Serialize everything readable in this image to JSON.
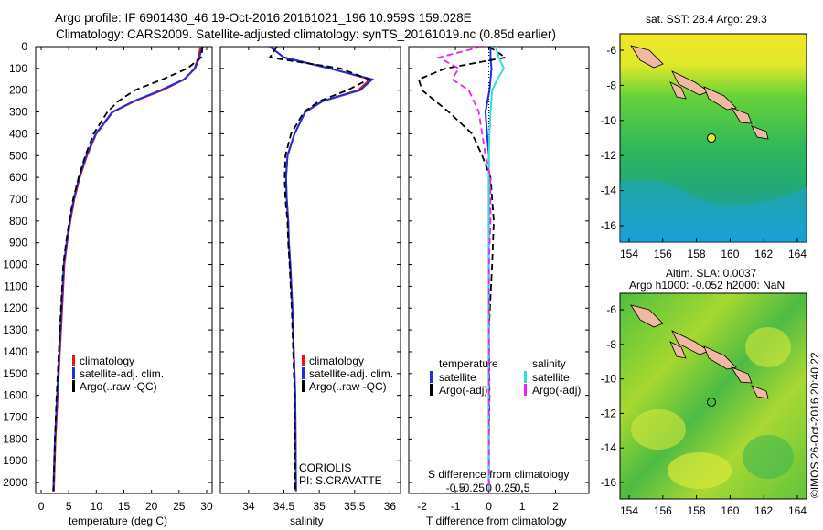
{
  "header": {
    "line1": "Argo profile: IF 6901430_46 19-Oct-2016 20161021_196 10.959S 159.028E",
    "line2": "Climatology: CARS2009. Satellite-adjusted climatology: synTS_20161019.nc (0.85d earlier)"
  },
  "credit": "©IMOS 26-Oct-2016 20:40:22",
  "colors": {
    "climatology": "#ee1111",
    "satellite": "#1f2fdd",
    "argo": "#000000",
    "satellite_s": "#33dddd",
    "argo_s": "#ee22ee"
  },
  "panels": {
    "temperature": {
      "xlabel": "temperature (deg C)",
      "xticks": [
        0,
        5,
        10,
        15,
        20,
        25,
        30
      ],
      "legend": [
        "climatology",
        "satellite-adj. clim.",
        "Argo(..raw -QC)"
      ]
    },
    "salinity": {
      "xlabel": "salinity",
      "xticks": [
        34,
        34.5,
        35,
        35.5,
        36
      ],
      "legend": [
        "climatology",
        "satellite-adj. clim.",
        "Argo(..raw -QC)"
      ],
      "note1": "CORIOLIS",
      "note2": "PI: S.CRAVATTE"
    },
    "difference": {
      "xlabel": "T difference from climatology",
      "xlabel_top": "S difference from climatology",
      "xticks": [
        -2,
        -1,
        0,
        1,
        2
      ],
      "xticks_top": [
        "-0.5",
        "-0.25",
        "0",
        "0.25",
        "0.5"
      ],
      "legend_t_head": "temperature",
      "legend_s_head": "salinity",
      "legend_t": [
        "satellite",
        "Argo(-adj)"
      ],
      "legend_s": [
        "satellite",
        "Argo(-adj)"
      ]
    }
  },
  "depth_ticks": [
    0,
    100,
    200,
    300,
    400,
    500,
    600,
    700,
    800,
    900,
    1000,
    1100,
    1200,
    1300,
    1400,
    1500,
    1600,
    1700,
    1800,
    1900,
    2000
  ],
  "map_sst": {
    "title": "sat. SST: 28.4 Argo: 29.3",
    "xticks": [
      154,
      156,
      158,
      160,
      162,
      164
    ],
    "yticks": [
      -6,
      -8,
      -10,
      -12,
      -14,
      -16
    ]
  },
  "map_sla": {
    "title1": "Altim. SLA: 0.0037",
    "title2": "Argo h1000: -0.052 h2000: NaN",
    "xticks": [
      154,
      156,
      158,
      160,
      162,
      164
    ],
    "yticks": [
      -6,
      -8,
      -10,
      -12,
      -14,
      -16
    ]
  },
  "chart_data": [
    {
      "type": "line",
      "name": "temperature profile",
      "xlabel": "temperature (deg C)",
      "ylabel": "",
      "xlim": [
        -1,
        31
      ],
      "ylim": [
        2050,
        0
      ],
      "series": [
        {
          "name": "climatology",
          "x": [
            28.9,
            28.5,
            27.8,
            26.0,
            22.0,
            17.0,
            13.0,
            10.0,
            8.3,
            7.0,
            6.0,
            5.3,
            4.7,
            4.2,
            3.8,
            3.4,
            3.0,
            2.6,
            2.3
          ],
          "y": [
            0,
            50,
            100,
            150,
            200,
            250,
            300,
            400,
            500,
            600,
            700,
            800,
            900,
            1000,
            1200,
            1400,
            1600,
            1800,
            2040
          ]
        },
        {
          "name": "satellite-adj. clim.",
          "x": [
            29.2,
            28.7,
            27.9,
            25.9,
            21.7,
            16.8,
            12.9,
            9.9,
            8.2,
            6.9,
            5.9,
            5.2,
            4.6,
            4.1,
            3.7,
            3.3,
            2.9,
            2.5,
            2.2
          ],
          "y": [
            0,
            50,
            100,
            150,
            200,
            250,
            300,
            400,
            500,
            600,
            700,
            800,
            900,
            1000,
            1200,
            1400,
            1600,
            1800,
            2040
          ]
        },
        {
          "name": "Argo(..raw -QC)",
          "x": [
            29.3,
            29.0,
            26.5,
            22.0,
            17.0,
            14.0,
            12.0,
            9.5,
            8.0,
            6.8,
            5.8,
            5.1,
            4.5,
            4.0,
            3.6,
            3.2,
            2.8,
            2.5,
            2.2
          ],
          "y": [
            0,
            50,
            100,
            150,
            200,
            250,
            300,
            400,
            500,
            600,
            700,
            800,
            900,
            1000,
            1200,
            1400,
            1600,
            1800,
            2040
          ]
        }
      ]
    },
    {
      "type": "line",
      "name": "salinity profile",
      "xlabel": "salinity",
      "ylabel": "",
      "xlim": [
        33.6,
        36.15
      ],
      "ylim": [
        2050,
        0
      ],
      "series": [
        {
          "name": "climatology",
          "x": [
            34.3,
            34.5,
            35.15,
            35.72,
            35.55,
            35.05,
            34.8,
            34.65,
            34.55,
            34.53,
            34.54,
            34.56,
            34.57,
            34.59,
            34.62,
            34.64,
            34.66,
            34.67
          ],
          "y": [
            0,
            50,
            100,
            150,
            200,
            250,
            300,
            400,
            500,
            600,
            700,
            800,
            900,
            1000,
            1200,
            1400,
            1600,
            2040
          ]
        },
        {
          "name": "satellite-adj. clim.",
          "x": [
            34.3,
            34.5,
            35.15,
            35.75,
            35.58,
            35.05,
            34.8,
            34.65,
            34.55,
            34.53,
            34.54,
            34.56,
            34.57,
            34.59,
            34.62,
            34.64,
            34.66,
            34.67
          ],
          "y": [
            0,
            50,
            100,
            150,
            200,
            250,
            300,
            400,
            500,
            600,
            700,
            800,
            900,
            1000,
            1200,
            1400,
            1600,
            2040
          ]
        },
        {
          "name": "Argo(..raw -QC)",
          "x": [
            34.4,
            34.3,
            35.3,
            35.7,
            35.4,
            35.0,
            34.78,
            34.6,
            34.52,
            34.51,
            34.52,
            34.55,
            34.56,
            34.58,
            34.61,
            34.63,
            34.65,
            34.66
          ],
          "y": [
            0,
            50,
            100,
            150,
            200,
            250,
            300,
            400,
            500,
            600,
            700,
            800,
            900,
            1000,
            1200,
            1400,
            1600,
            2040
          ]
        }
      ]
    },
    {
      "type": "line",
      "name": "difference from climatology",
      "xlabel": "T difference from climatology",
      "ylabel": "",
      "xlim": [
        -2.4,
        3.0
      ],
      "ylim": [
        2050,
        0
      ],
      "series": [
        {
          "name": "temperature satellite",
          "x": [
            0.05,
            0.05,
            0.08,
            0.05,
            0.02,
            -0.1,
            -0.05,
            0,
            0,
            0,
            0,
            0,
            0,
            0,
            0
          ],
          "y": [
            0,
            50,
            100,
            150,
            200,
            300,
            400,
            500,
            600,
            800,
            1000,
            1300,
            1600,
            1800,
            2040
          ]
        },
        {
          "name": "temperature Argo(-adj)",
          "x": [
            0,
            0.5,
            -1.3,
            -2.1,
            -2.0,
            -1.2,
            -0.5,
            -0.2,
            0.05,
            0.15,
            0.1,
            0.0,
            0.02,
            0.0,
            0.0
          ],
          "y": [
            0,
            50,
            100,
            150,
            200,
            300,
            400,
            500,
            600,
            800,
            1000,
            1300,
            1600,
            1800,
            2040
          ]
        },
        {
          "name": "salinity satellite",
          "x": [
            0.2,
            0.3,
            0.45,
            0.25,
            0.1,
            0.05,
            0.02,
            0.0,
            0.0,
            0.0,
            0.0,
            0.0,
            0.0,
            0.0,
            0.0
          ],
          "y": [
            0,
            50,
            100,
            150,
            200,
            300,
            400,
            500,
            600,
            800,
            1000,
            1300,
            1600,
            1800,
            2040
          ]
        },
        {
          "name": "salinity Argo(-adj)",
          "x": [
            -0.2,
            -1.5,
            -0.9,
            -1.1,
            -0.6,
            -0.3,
            -0.2,
            -0.1,
            0.05,
            0.05,
            0.0,
            0.0,
            0.0,
            0.0,
            0.0
          ],
          "y": [
            0,
            50,
            100,
            150,
            200,
            300,
            400,
            500,
            600,
            800,
            1000,
            1300,
            1600,
            1800,
            2040
          ]
        }
      ]
    }
  ]
}
